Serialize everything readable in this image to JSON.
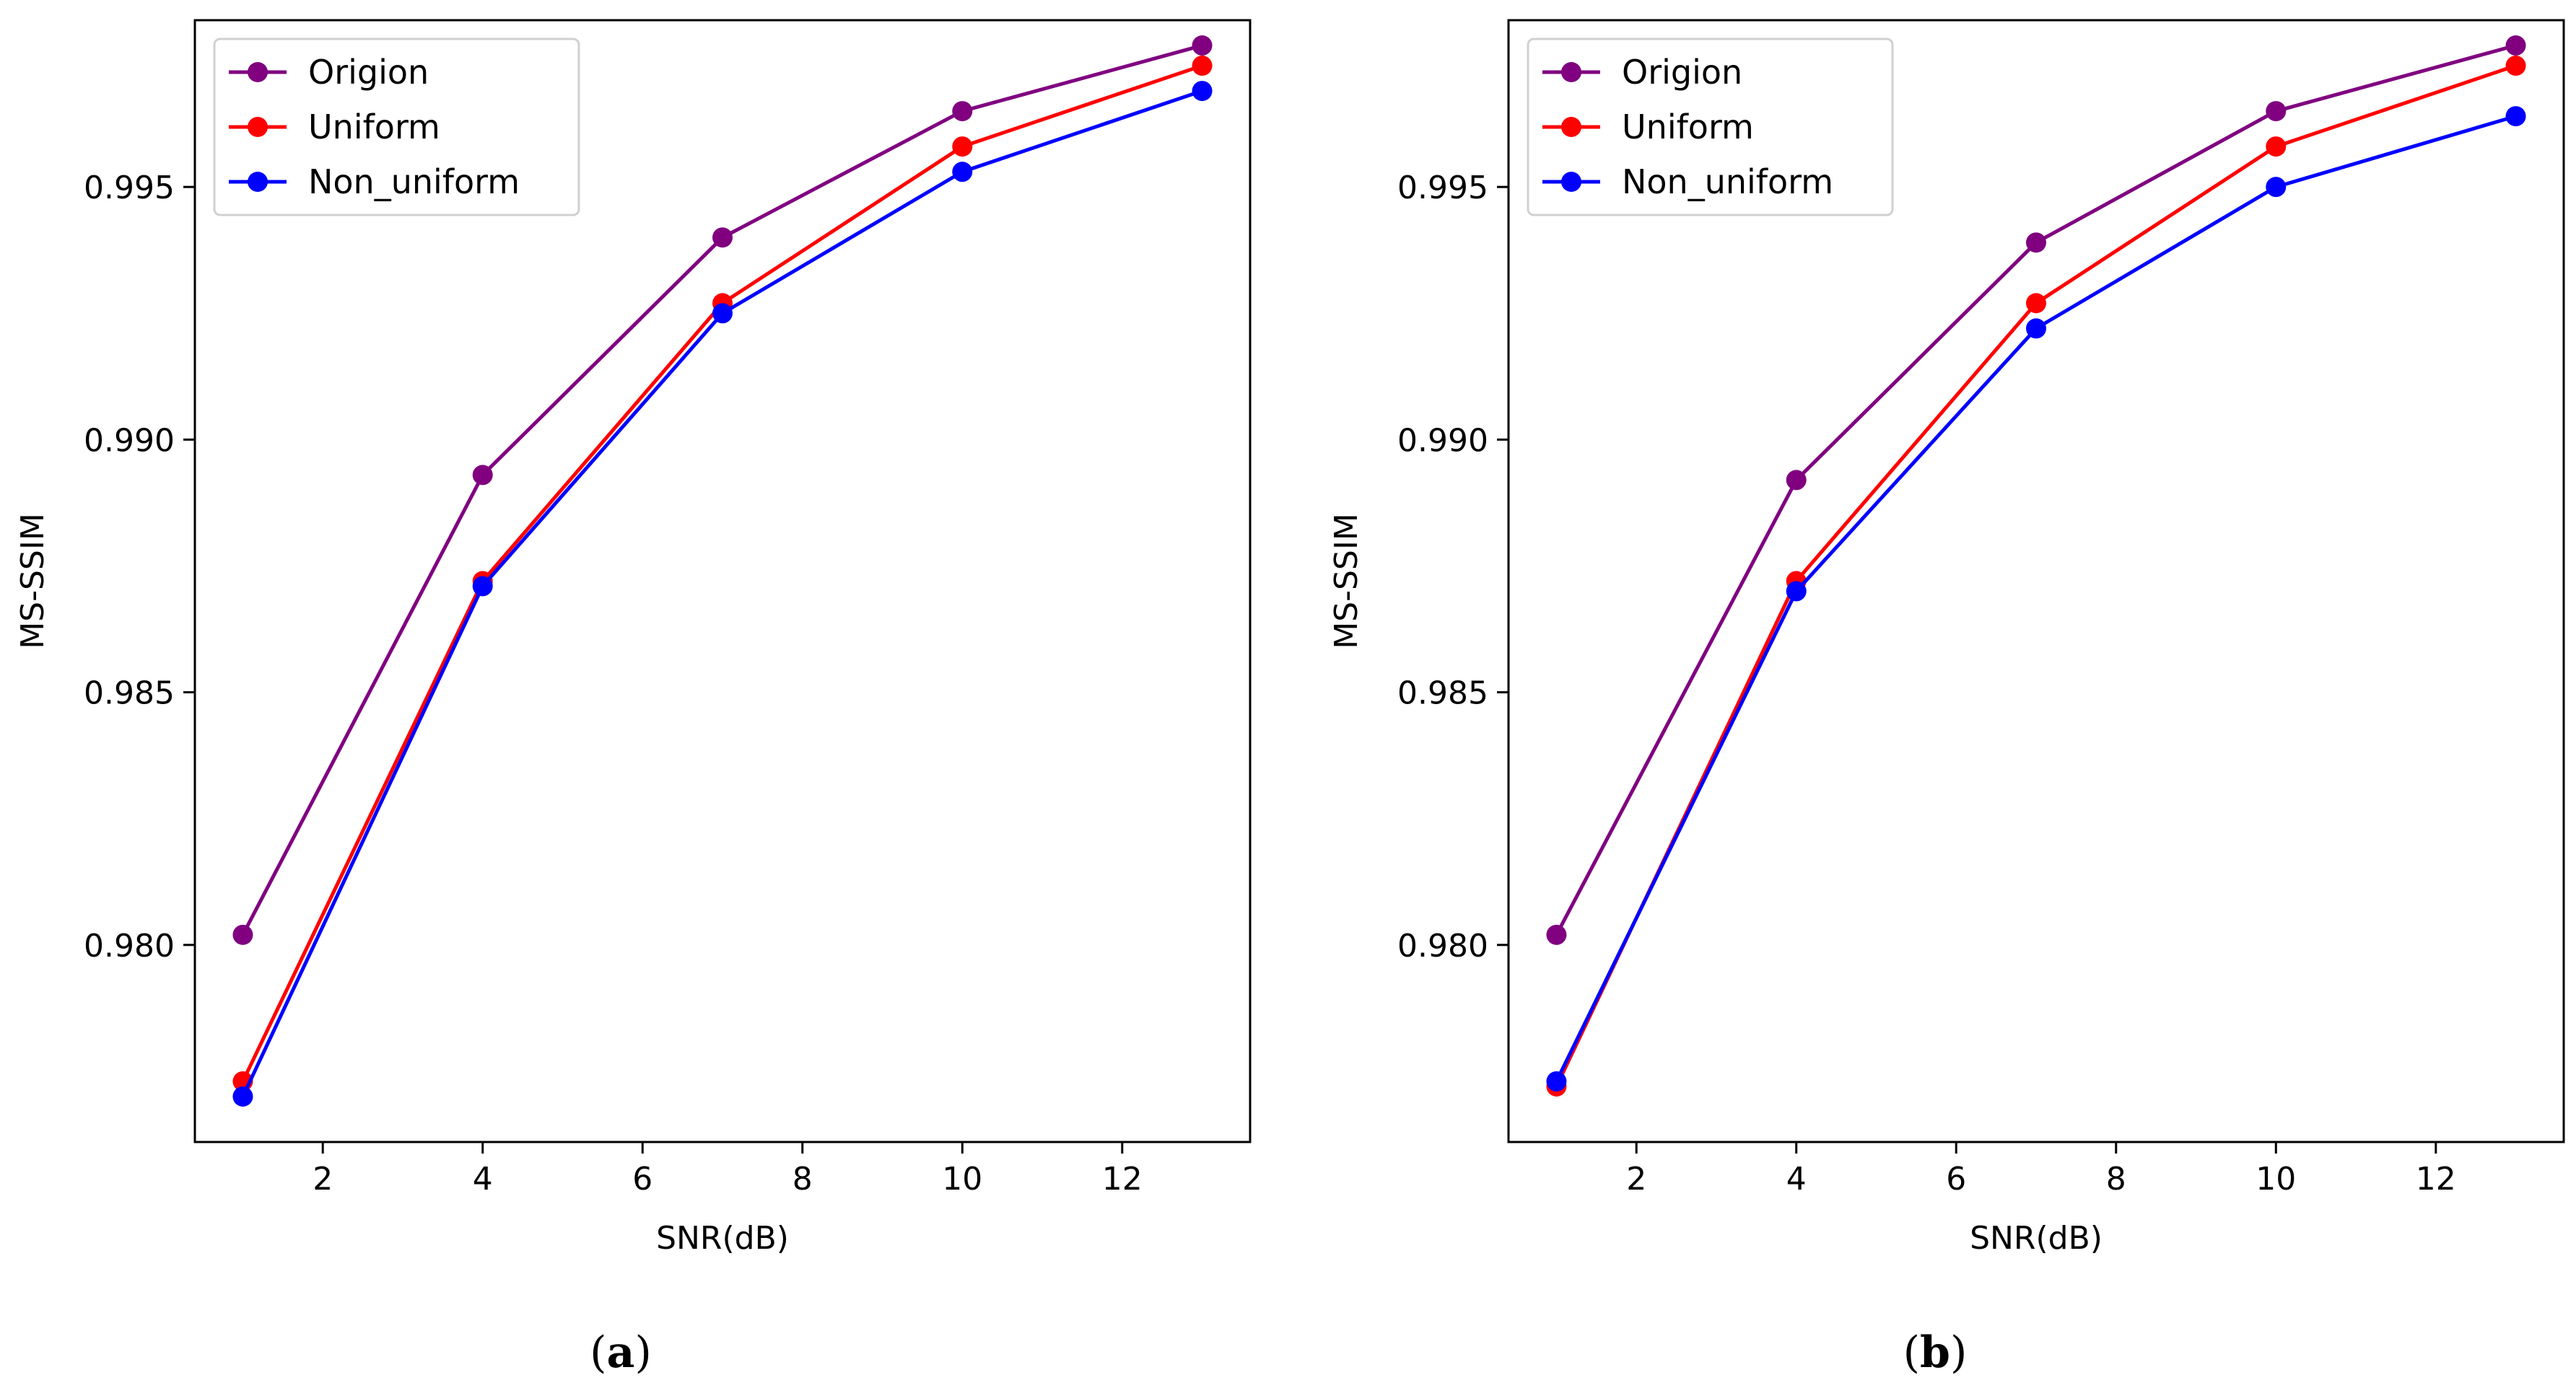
{
  "chart_data": [
    {
      "type": "line",
      "panel_label": "a",
      "xlabel": "SNR(dB)",
      "ylabel": "MS-SSIM",
      "xlim": [
        0.4,
        13.6
      ],
      "ylim": [
        0.9761,
        0.9983
      ],
      "xticks": [
        2,
        4,
        6,
        8,
        10,
        12
      ],
      "yticks": [
        0.98,
        0.985,
        0.99,
        0.995
      ],
      "xtick_labels": [
        "2",
        "4",
        "6",
        "8",
        "10",
        "12"
      ],
      "ytick_labels": [
        "0.980",
        "0.985",
        "0.990",
        "0.995"
      ],
      "legend_position": "upper-left",
      "x": [
        1,
        4,
        7,
        10,
        13
      ],
      "series": [
        {
          "name": "Origion",
          "color": "#800080",
          "values": [
            0.9802,
            0.9893,
            0.994,
            0.9965,
            0.9978
          ]
        },
        {
          "name": "Uniform",
          "color": "#ff0000",
          "values": [
            0.9773,
            0.9872,
            0.9927,
            0.9958,
            0.9974
          ]
        },
        {
          "name": "Non_uniform",
          "color": "#0000ff",
          "values": [
            0.977,
            0.9871,
            0.9925,
            0.9953,
            0.9969
          ]
        }
      ]
    },
    {
      "type": "line",
      "panel_label": "b",
      "xlabel": "SNR(dB)",
      "ylabel": "MS-SSIM",
      "xlim": [
        0.4,
        13.6
      ],
      "ylim": [
        0.9761,
        0.9983
      ],
      "xticks": [
        2,
        4,
        6,
        8,
        10,
        12
      ],
      "yticks": [
        0.98,
        0.985,
        0.99,
        0.995
      ],
      "xtick_labels": [
        "2",
        "4",
        "6",
        "8",
        "10",
        "12"
      ],
      "ytick_labels": [
        "0.980",
        "0.985",
        "0.990",
        "0.995"
      ],
      "legend_position": "upper-left",
      "x": [
        1,
        4,
        7,
        10,
        13
      ],
      "series": [
        {
          "name": "Origion",
          "color": "#800080",
          "values": [
            0.9802,
            0.9892,
            0.9939,
            0.9965,
            0.9978
          ]
        },
        {
          "name": "Uniform",
          "color": "#ff0000",
          "values": [
            0.9772,
            0.9872,
            0.9927,
            0.9958,
            0.9974
          ]
        },
        {
          "name": "Non_uniform",
          "color": "#0000ff",
          "values": [
            0.9773,
            0.987,
            0.9922,
            0.995,
            0.9964
          ]
        }
      ]
    }
  ]
}
